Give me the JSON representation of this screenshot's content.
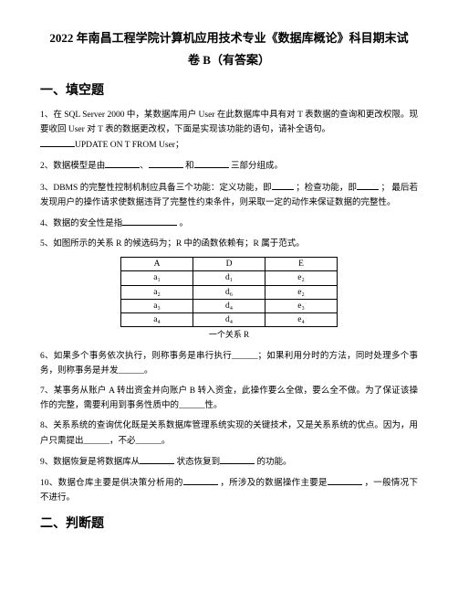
{
  "title_line1": "2022 年南昌工程学院计算机应用技术专业《数据库概论》科目期末试",
  "title_line2": "卷 B（有答案）",
  "section1": "一、填空题",
  "q1a": "1、在 SQL Server 2000 中，某数据库用户 User 在此数据库中具有对 T 表数据的查询和更改权限。现要收回 User 对 T 表的数据更改权，下面是实现该功能的语句，请补全语句。",
  "q1b": "UPDATE ON T FROM User；",
  "q2a": "2、数据模型是由",
  "q2b": "和",
  "q2c": "三部分组成。",
  "q3a": "3、DBMS 的完整性控制机制应具备三个功能：定义功能，即",
  "q3b": "；检查功能，即",
  "q3c": "；",
  "q3d": "最后若发现用户的操作请求使数据违背了完整性约束条件，则采取一定的动作来保证数据的完整性。",
  "q4a": "4、数据的安全性是指",
  "q4b": "。",
  "q5": "5、如图所示的关系 R 的候选码为；R 中的函数依赖有；R 属于范式。",
  "table": {
    "headers": [
      "A",
      "D",
      "E"
    ],
    "rows": [
      [
        "a₁",
        "d₁",
        "e₂"
      ],
      [
        "a₂",
        "d₆",
        "e₂"
      ],
      [
        "a₃",
        "d₄",
        "e₃"
      ],
      [
        "a₄",
        "d₄",
        "e₄"
      ]
    ]
  },
  "caption": "一个关系 R",
  "q6": "6、如果多个事务依次执行，则称事务是串行执行______；如果利用分时的方法，同时处理多个事务，则称事务是并发______。",
  "q7": "7、某事务从账户 A 转出资金并向账户 B 转入资金，此操作要么全做，要么全不做。为了保证该操作的完整，需要利用到事务性质中的______性。",
  "q8": "8、关系系统的查询优化既是关系数据库管理系统实现的关键技术，又是关系系统的优点。因为，用户只需提出______，不必______。",
  "q9a": "9、数据恢复是将数据库从",
  "q9b": "状态恢复到",
  "q9c": "的功能。",
  "q10a": "10、数据仓库主要是供决策分析用的",
  "q10b": "，所涉及的数据操作主要是",
  "q10c": "，一般情况下",
  "q10d": "不进行。",
  "section2": "二、判断题"
}
